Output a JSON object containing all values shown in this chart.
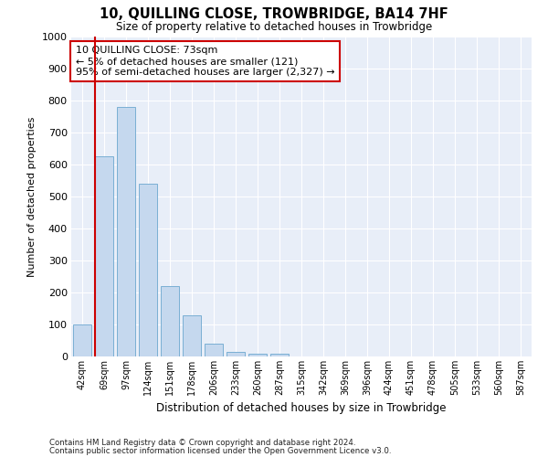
{
  "title": "10, QUILLING CLOSE, TROWBRIDGE, BA14 7HF",
  "subtitle": "Size of property relative to detached houses in Trowbridge",
  "xlabel": "Distribution of detached houses by size in Trowbridge",
  "ylabel": "Number of detached properties",
  "bar_color": "#c5d8ee",
  "bar_edge_color": "#7aafd4",
  "background_color": "#e8eef8",
  "grid_color": "#d0d8e8",
  "annotation_box_color": "#cc0000",
  "vline_color": "#cc0000",
  "categories": [
    "42sqm",
    "69sqm",
    "97sqm",
    "124sqm",
    "151sqm",
    "178sqm",
    "206sqm",
    "233sqm",
    "260sqm",
    "287sqm",
    "315sqm",
    "342sqm",
    "369sqm",
    "396sqm",
    "424sqm",
    "451sqm",
    "478sqm",
    "505sqm",
    "533sqm",
    "560sqm",
    "587sqm"
  ],
  "values": [
    100,
    625,
    780,
    540,
    220,
    130,
    40,
    15,
    10,
    10,
    0,
    0,
    0,
    0,
    0,
    0,
    0,
    0,
    0,
    0,
    0
  ],
  "ylim": [
    0,
    1000
  ],
  "yticks": [
    0,
    100,
    200,
    300,
    400,
    500,
    600,
    700,
    800,
    900,
    1000
  ],
  "vline_position": 0.57,
  "annotation_text": "10 QUILLING CLOSE: 73sqm\n← 5% of detached houses are smaller (121)\n95% of semi-detached houses are larger (2,327) →",
  "footnote1": "Contains HM Land Registry data © Crown copyright and database right 2024.",
  "footnote2": "Contains public sector information licensed under the Open Government Licence v3.0."
}
